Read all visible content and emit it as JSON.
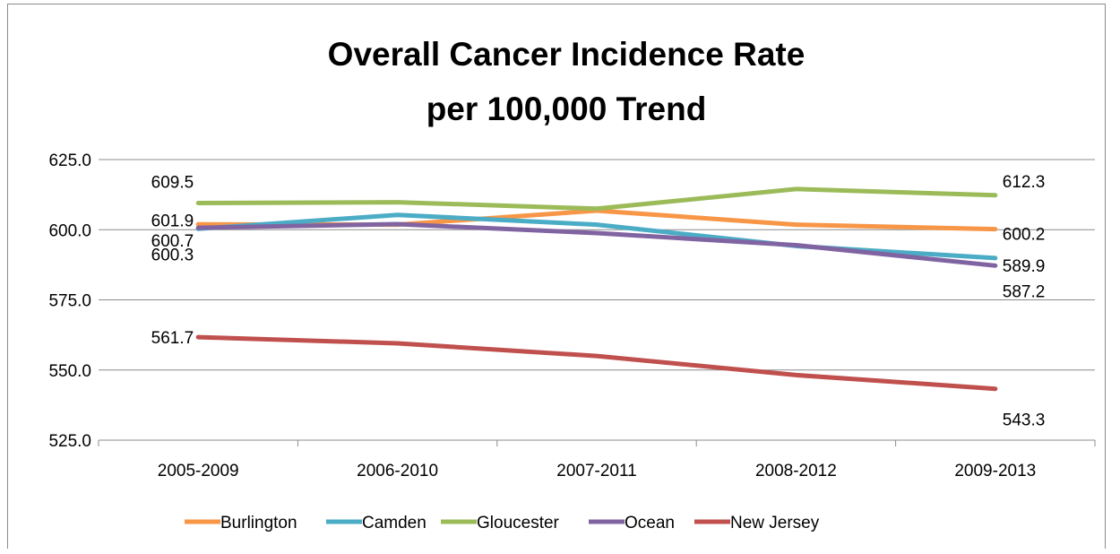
{
  "chart_data": {
    "type": "line",
    "title_lines": [
      "Overall Cancer Incidence Rate",
      "per 100,000 Trend"
    ],
    "categories": [
      "2005-2009",
      "2006-2010",
      "2007-2011",
      "2008-2012",
      "2009-2013"
    ],
    "ylim": [
      525.0,
      625.0
    ],
    "yticks": [
      "525.0",
      "550.0",
      "575.0",
      "600.0",
      "625.0"
    ],
    "grid": true,
    "legend_position": "bottom",
    "series": [
      {
        "name": "Burlington",
        "color": "#f79646",
        "values": [
          601.9,
          601.8,
          606.8,
          601.8,
          600.2
        ]
      },
      {
        "name": "Camden",
        "color": "#4bacc6",
        "values": [
          600.3,
          605.3,
          601.8,
          594.2,
          589.9
        ]
      },
      {
        "name": "Gloucester",
        "color": "#9bbb59",
        "values": [
          609.5,
          609.8,
          607.5,
          614.5,
          612.3
        ]
      },
      {
        "name": "Ocean",
        "color": "#8064a2",
        "values": [
          600.7,
          602.0,
          598.8,
          594.5,
          587.2
        ]
      },
      {
        "name": "New Jersey",
        "color": "#c0504d",
        "values": [
          561.7,
          559.5,
          555.0,
          548.2,
          543.3
        ]
      }
    ],
    "data_labels": [
      {
        "series": 2,
        "point": 0,
        "text": "609.5"
      },
      {
        "series": 0,
        "point": 0,
        "text": "601.9"
      },
      {
        "series": 3,
        "point": 0,
        "text": "600.7"
      },
      {
        "series": 1,
        "point": 0,
        "text": "600.3"
      },
      {
        "series": 4,
        "point": 0,
        "text": "561.7"
      },
      {
        "series": 2,
        "point": 4,
        "text": "612.3"
      },
      {
        "series": 0,
        "point": 4,
        "text": "600.2"
      },
      {
        "series": 1,
        "point": 4,
        "text": "589.9"
      },
      {
        "series": 3,
        "point": 4,
        "text": "587.2"
      },
      {
        "series": 4,
        "point": 4,
        "text": "543.3"
      }
    ]
  }
}
